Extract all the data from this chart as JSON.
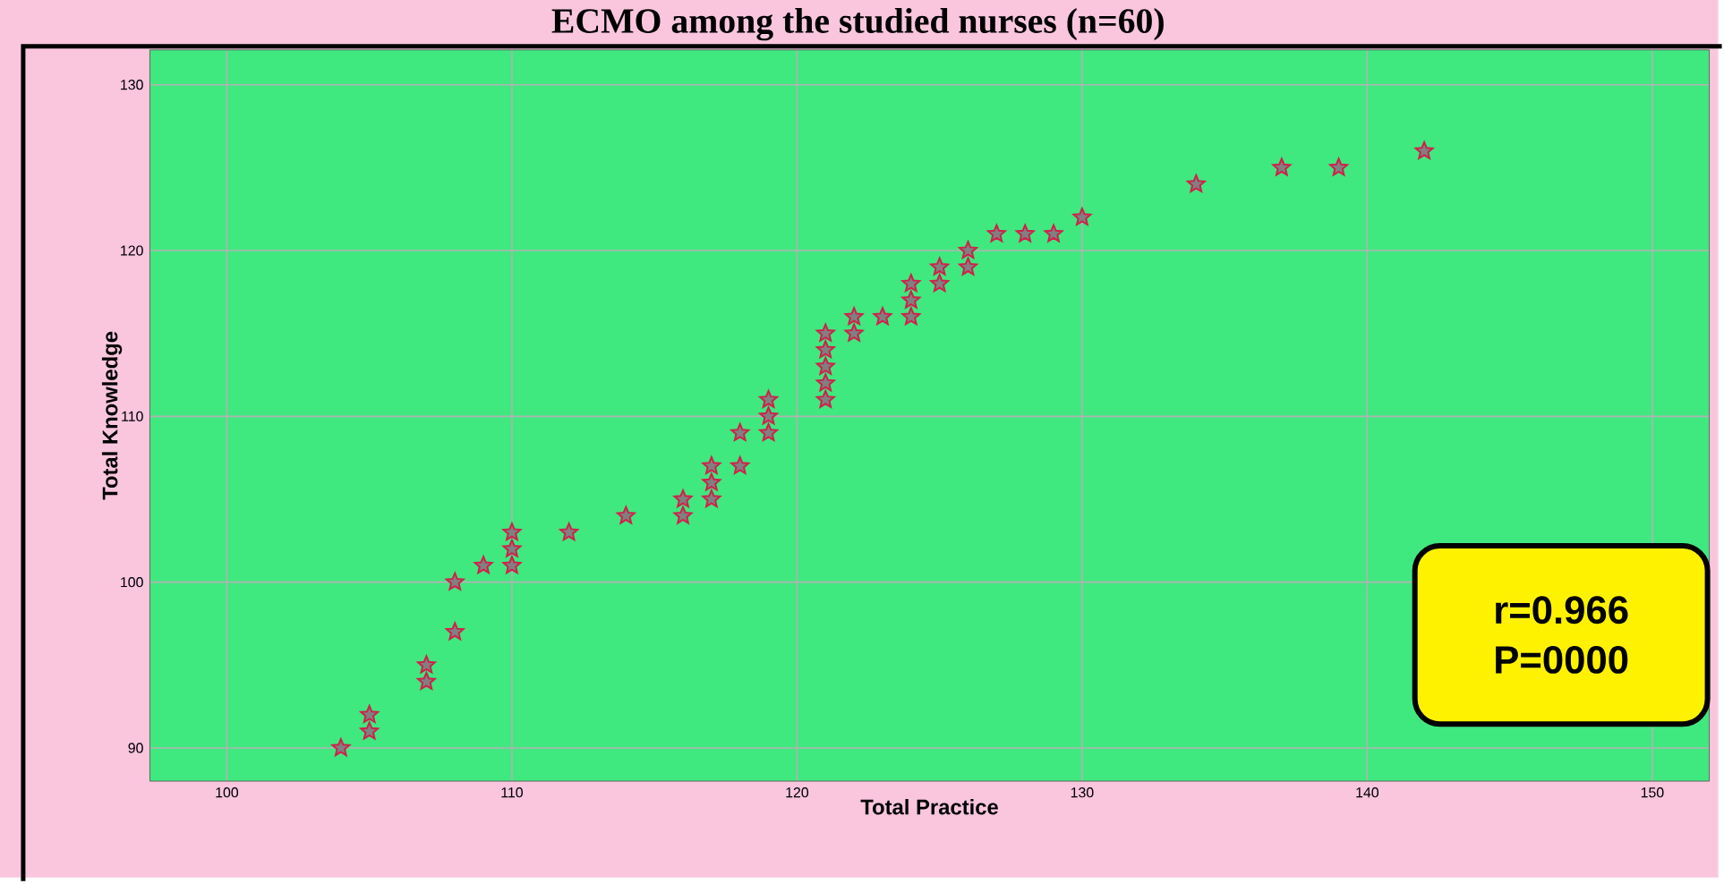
{
  "chart_data": {
    "type": "scatter",
    "title": "ECMO among the studied nurses (n=60)",
    "xlabel": "Total Practice",
    "ylabel": "Total Knowledge",
    "x": [
      104,
      105,
      105,
      107,
      107,
      108,
      108,
      109,
      110,
      110,
      110,
      112,
      114,
      116,
      116,
      117,
      117,
      117,
      118,
      118,
      119,
      119,
      119,
      121,
      121,
      121,
      121,
      121,
      122,
      122,
      123,
      124,
      124,
      124,
      125,
      125,
      126,
      126,
      127,
      128,
      129,
      130,
      134,
      137,
      139,
      142
    ],
    "values": [
      90,
      91,
      92,
      94,
      95,
      97,
      100,
      101,
      101,
      102,
      103,
      103,
      104,
      104,
      105,
      105,
      106,
      107,
      107,
      109,
      109,
      110,
      111,
      111,
      112,
      113,
      114,
      115,
      115,
      116,
      116,
      116,
      117,
      118,
      118,
      119,
      119,
      120,
      121,
      121,
      121,
      122,
      124,
      125,
      125,
      126
    ],
    "color": "#d0204a",
    "marker": "star",
    "xlim": [
      97.3,
      152
    ],
    "ylim": [
      88,
      132.1
    ],
    "xticks": [
      100,
      110,
      120,
      130,
      140,
      150
    ],
    "yticks": [
      90,
      100,
      110,
      120,
      130
    ],
    "grid": true,
    "annotations": [
      "r=0.966",
      "P=0000"
    ]
  }
}
